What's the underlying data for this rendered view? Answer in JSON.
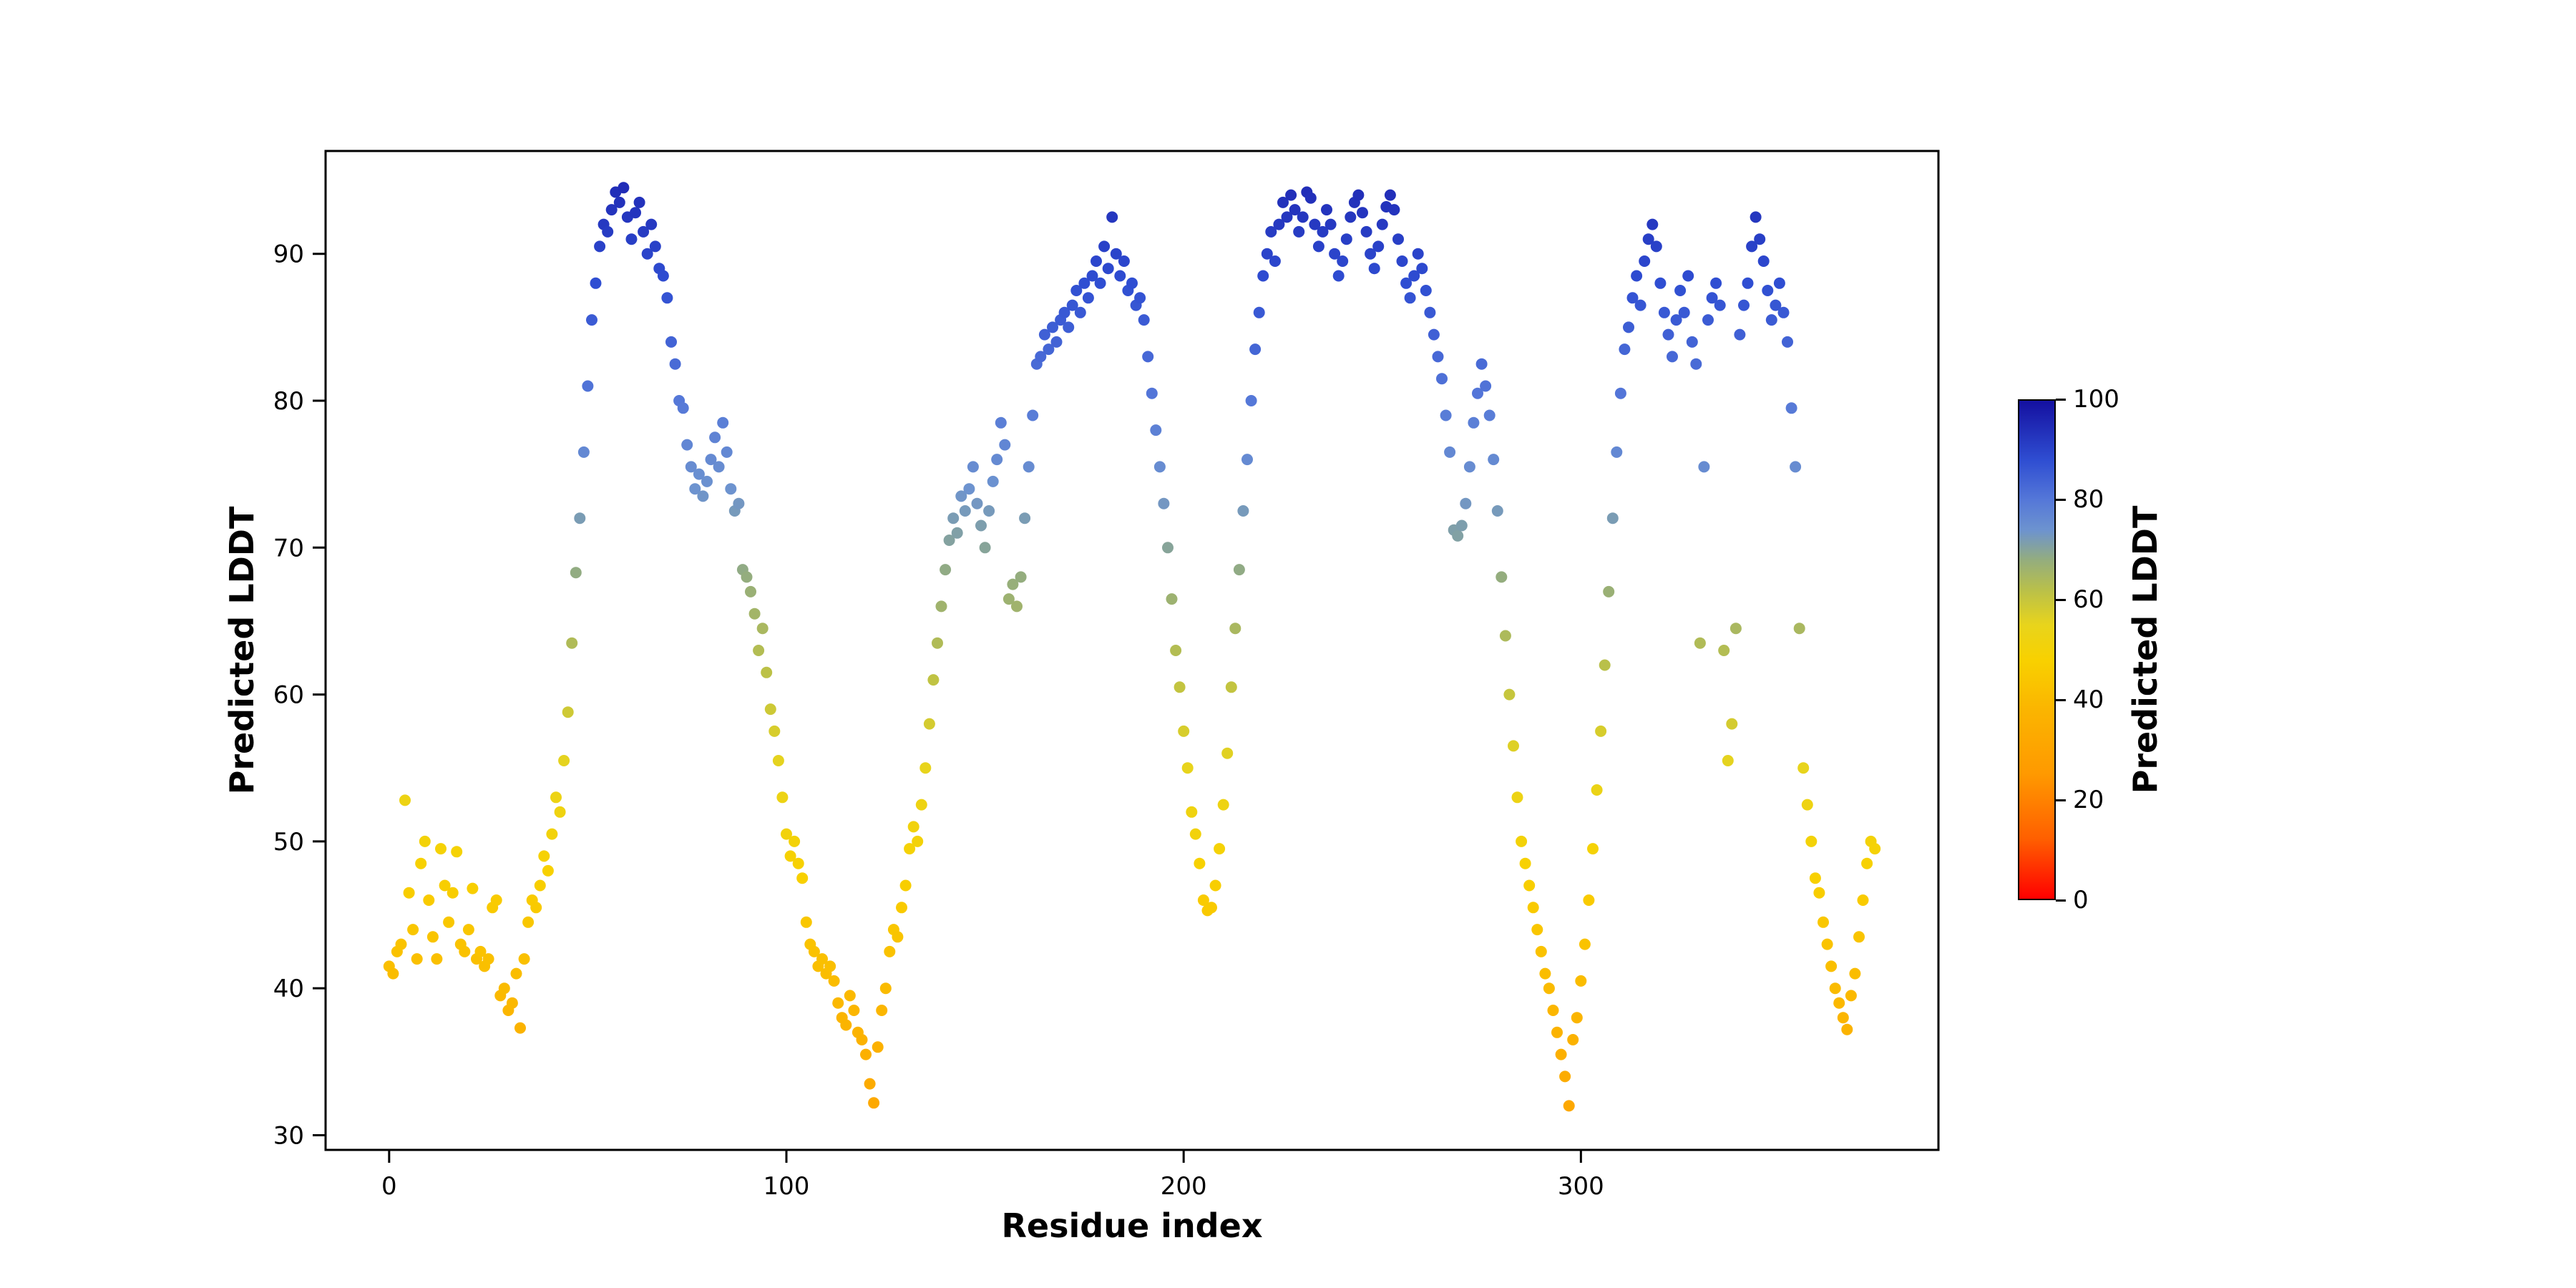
{
  "chart_data": {
    "type": "scatter",
    "title": "",
    "xlabel": "Residue index",
    "ylabel": "Predicted LDDT",
    "x_start": 0,
    "x_step": 1,
    "xlim": [
      -16,
      390
    ],
    "ylim": [
      29,
      97
    ],
    "xticks": [
      0,
      100,
      200,
      300
    ],
    "yticks": [
      30,
      40,
      50,
      60,
      70,
      80,
      90
    ],
    "grid": false,
    "legend": "none",
    "point_color_mapped_to": "y",
    "colorbar": {
      "label": "Predicted LDDT",
      "min": 0,
      "max": 100,
      "ticks": [
        0,
        20,
        40,
        60,
        80,
        100
      ]
    },
    "colormap_stops": [
      [
        0,
        "#ff0000"
      ],
      [
        12,
        "#ff5f00"
      ],
      [
        25,
        "#ff9900"
      ],
      [
        38,
        "#fbb500"
      ],
      [
        48,
        "#f8d100"
      ],
      [
        55,
        "#e8d41c"
      ],
      [
        62,
        "#b9c04a"
      ],
      [
        68,
        "#94ad7e"
      ],
      [
        74,
        "#6d93cf"
      ],
      [
        80,
        "#5578d8"
      ],
      [
        88,
        "#2f4ed2"
      ],
      [
        100,
        "#1410a0"
      ]
    ],
    "y": [
      41.5,
      41.0,
      42.5,
      43.0,
      52.8,
      46.5,
      44.0,
      42.0,
      48.5,
      50.0,
      46.0,
      43.5,
      42.0,
      49.5,
      47.0,
      44.5,
      46.5,
      49.3,
      43.0,
      42.5,
      44.0,
      46.8,
      42.0,
      42.5,
      41.5,
      42.0,
      45.5,
      46.0,
      39.5,
      40.0,
      38.5,
      39.0,
      41.0,
      37.3,
      42.0,
      44.5,
      46.0,
      45.5,
      47.0,
      49.0,
      48.0,
      50.5,
      53.0,
      52.0,
      55.5,
      58.8,
      63.5,
      68.3,
      72.0,
      76.5,
      81.0,
      85.5,
      88.0,
      90.5,
      92.0,
      91.5,
      93.0,
      94.2,
      93.5,
      94.5,
      92.5,
      91.0,
      92.8,
      93.5,
      91.5,
      90.0,
      92.0,
      90.5,
      89.0,
      88.5,
      87.0,
      84.0,
      82.5,
      80.0,
      79.5,
      77.0,
      75.5,
      74.0,
      75.0,
      73.5,
      74.5,
      76.0,
      77.5,
      75.5,
      78.5,
      76.5,
      74.0,
      72.5,
      73.0,
      68.5,
      68.0,
      67.0,
      65.5,
      63.0,
      64.5,
      61.5,
      59.0,
      57.5,
      55.5,
      53.0,
      50.5,
      49.0,
      50.0,
      48.5,
      47.5,
      44.5,
      43.0,
      42.5,
      41.5,
      42.0,
      41.0,
      41.5,
      40.5,
      39.0,
      38.0,
      37.5,
      39.5,
      38.5,
      37.0,
      36.5,
      35.5,
      33.5,
      32.2,
      36.0,
      38.5,
      40.0,
      42.5,
      44.0,
      43.5,
      45.5,
      47.0,
      49.5,
      51.0,
      50.0,
      52.5,
      55.0,
      58.0,
      61.0,
      63.5,
      66.0,
      68.5,
      70.5,
      72.0,
      71.0,
      73.5,
      72.5,
      74.0,
      75.5,
      73.0,
      71.5,
      70.0,
      72.5,
      74.5,
      76.0,
      78.5,
      77.0,
      66.5,
      67.5,
      66.0,
      68.0,
      72.0,
      75.5,
      79.0,
      82.5,
      83.0,
      84.5,
      83.5,
      85.0,
      84.0,
      85.5,
      86.0,
      85.0,
      86.5,
      87.5,
      86.0,
      88.0,
      87.0,
      88.5,
      89.5,
      88.0,
      90.5,
      89.0,
      92.5,
      90.0,
      88.5,
      89.5,
      87.5,
      88.0,
      86.5,
      87.0,
      85.5,
      83.0,
      80.5,
      78.0,
      75.5,
      73.0,
      70.0,
      66.5,
      63.0,
      60.5,
      57.5,
      55.0,
      52.0,
      50.5,
      48.5,
      46.0,
      45.3,
      45.5,
      47.0,
      49.5,
      52.5,
      56.0,
      60.5,
      64.5,
      68.5,
      72.5,
      76.0,
      80.0,
      83.5,
      86.0,
      88.5,
      90.0,
      91.5,
      89.5,
      92.0,
      93.5,
      92.5,
      94.0,
      93.0,
      91.5,
      92.5,
      94.2,
      93.8,
      92.0,
      90.5,
      91.5,
      93.0,
      92.0,
      90.0,
      88.5,
      89.5,
      91.0,
      92.5,
      93.5,
      94.0,
      92.8,
      91.5,
      90.0,
      89.0,
      90.5,
      92.0,
      93.2,
      94.0,
      93.0,
      91.0,
      89.5,
      88.0,
      87.0,
      88.5,
      90.0,
      89.0,
      87.5,
      86.0,
      84.5,
      83.0,
      81.5,
      79.0,
      76.5,
      71.2,
      70.8,
      71.5,
      73.0,
      75.5,
      78.5,
      80.5,
      82.5,
      81.0,
      79.0,
      76.0,
      72.5,
      68.0,
      64.0,
      60.0,
      56.5,
      53.0,
      50.0,
      48.5,
      47.0,
      45.5,
      44.0,
      42.5,
      41.0,
      40.0,
      38.5,
      37.0,
      35.5,
      34.0,
      32.0,
      36.5,
      38.0,
      40.5,
      43.0,
      46.0,
      49.5,
      53.5,
      57.5,
      62.0,
      67.0,
      72.0,
      76.5,
      80.5,
      83.5,
      85.0,
      87.0,
      88.5,
      86.5,
      89.5,
      91.0,
      92.0,
      90.5,
      88.0,
      86.0,
      84.5,
      83.0,
      85.5,
      87.5,
      86.0,
      88.5,
      84.0,
      82.5,
      63.5,
      75.5,
      85.5,
      87.0,
      88.0,
      86.5,
      63.0,
      55.5,
      58.0,
      64.5,
      84.5,
      86.5,
      88.0,
      90.5,
      92.5,
      91.0,
      89.5,
      87.5,
      85.5,
      86.5,
      88.0,
      86.0,
      84.0,
      79.5,
      75.5,
      64.5,
      55.0,
      52.5,
      50.0,
      47.5,
      46.5,
      44.5,
      43.0,
      41.5,
      40.0,
      39.0,
      38.0,
      37.2,
      39.5,
      41.0,
      43.5,
      46.0,
      48.5,
      50.0,
      49.5
    ]
  }
}
